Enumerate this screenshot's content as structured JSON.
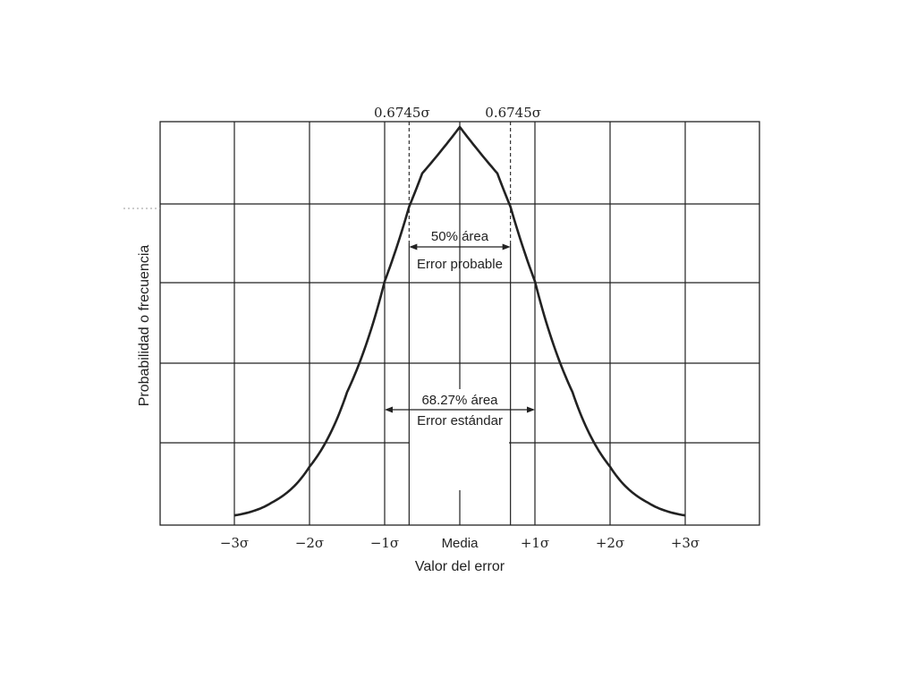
{
  "chart_data": {
    "type": "line",
    "xlabel": "Valor del error",
    "ylabel": "Probabilidad o frecuencia",
    "x_ticks": [
      {
        "value": -3,
        "label": "−3σ"
      },
      {
        "value": -2,
        "label": "−2σ"
      },
      {
        "value": -1,
        "label": "−1σ"
      },
      {
        "value": 0,
        "label": "Media"
      },
      {
        "value": 1,
        "label": "+1σ"
      },
      {
        "value": 2,
        "label": "+2σ"
      },
      {
        "value": 3,
        "label": "+3σ"
      }
    ],
    "xlim": [
      -4,
      4
    ],
    "series": [
      {
        "x": [
          -3,
          -2.5,
          -2,
          -1.5,
          -1,
          -0.6745,
          -0.5,
          0,
          0.5,
          0.6745,
          1,
          1.5,
          2,
          2.5,
          3
        ],
        "y": [
          0.011,
          0.044,
          0.135,
          0.325,
          0.607,
          0.797,
          0.882,
          1.0,
          0.882,
          0.797,
          0.607,
          0.325,
          0.135,
          0.044,
          0.011
        ]
      }
    ],
    "ylim": [
      0,
      1
    ],
    "grid": true,
    "annotations": {
      "probable_error_marker_left": "0.6745σ",
      "probable_error_marker_right": "0.6745σ",
      "probable_error_range": [
        -0.6745,
        0.6745
      ],
      "probable_error_area": "50% área",
      "probable_error_label": "Error probable",
      "standard_error_range": [
        -1,
        1
      ],
      "standard_error_area": "68.27% área",
      "standard_error_label": "Error estándar"
    }
  }
}
